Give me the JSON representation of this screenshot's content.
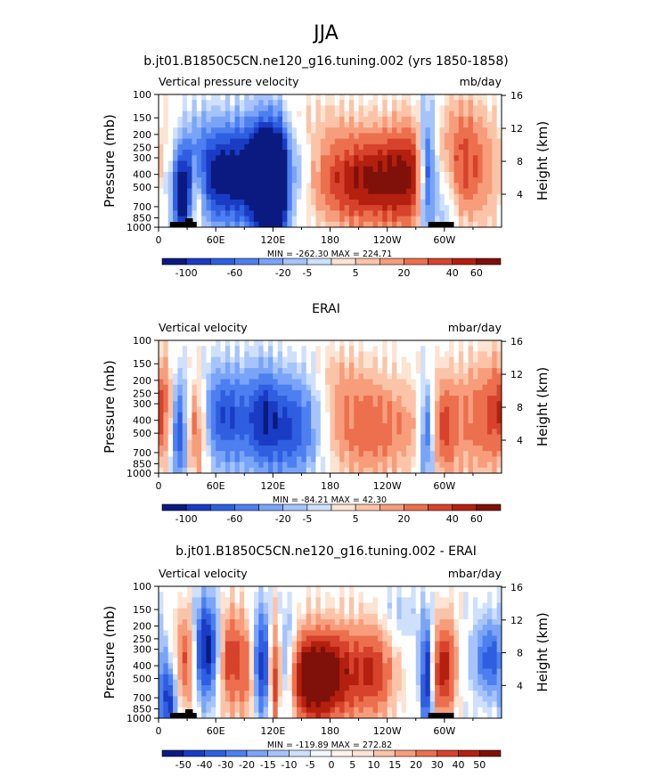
{
  "figure": {
    "season": "JJA"
  },
  "colors": {
    "blues": [
      "#0a1a80",
      "#1a3cc4",
      "#2f5fe0",
      "#4d7ff0",
      "#7aa4f7",
      "#a6c4fb",
      "#cfe0fd"
    ],
    "reds": [
      "#fde3d2",
      "#fbc4a8",
      "#f79d7c",
      "#ec6f4e",
      "#d6422c",
      "#b4200f",
      "#80100a"
    ]
  },
  "chart_data": [
    {
      "type": "heatmap",
      "title": "b.jt01.B1850C5CN.ne120_g16.tuning.002 (yrs 1850-1858)",
      "left_label": "Vertical pressure velocity",
      "right_label": "mb/day",
      "ylabel": "Pressure (mb)",
      "y2label": "Height (km)",
      "x_ticks": [
        "0",
        "60E",
        "120E",
        "180",
        "120W",
        "60W"
      ],
      "y_ticks": [
        "100",
        "150",
        "200",
        "250",
        "300",
        "400",
        "500",
        "700",
        "850",
        "1000"
      ],
      "y2_ticks": [
        "16",
        "12",
        "8",
        "4"
      ],
      "stats": "MIN = -262.30   MAX = 224.71",
      "colorbar_labels": [
        "-100",
        "-60",
        "-20",
        "-5",
        "5",
        "20",
        "40",
        "60"
      ],
      "ylim": [
        1000,
        100
      ],
      "xlim": [
        0,
        360
      ]
    },
    {
      "type": "heatmap",
      "title": "ERAI",
      "left_label": "Vertical velocity",
      "right_label": "mbar/day",
      "ylabel": "Pressure (mb)",
      "y2label": "Height (km)",
      "x_ticks": [
        "0",
        "60E",
        "120E",
        "180",
        "120W",
        "60W"
      ],
      "y_ticks": [
        "100",
        "150",
        "200",
        "250",
        "300",
        "400",
        "500",
        "700",
        "850",
        "1000"
      ],
      "y2_ticks": [
        "16",
        "12",
        "8",
        "4"
      ],
      "stats": "MIN = -84.21   MAX =  42.30",
      "colorbar_labels": [
        "-100",
        "-60",
        "-20",
        "-5",
        "5",
        "20",
        "40",
        "60"
      ],
      "ylim": [
        1000,
        100
      ],
      "xlim": [
        0,
        360
      ]
    },
    {
      "type": "heatmap",
      "title": "b.jt01.B1850C5CN.ne120_g16.tuning.002 - ERAI",
      "left_label": "Vertical velocity",
      "right_label": "mbar/day",
      "ylabel": "Pressure (mb)",
      "y2label": "Height (km)",
      "x_ticks": [
        "0",
        "60E",
        "120E",
        "180",
        "120W",
        "60W"
      ],
      "y_ticks": [
        "100",
        "150",
        "200",
        "250",
        "300",
        "400",
        "500",
        "700",
        "850",
        "1000"
      ],
      "y2_ticks": [
        "16",
        "12",
        "8",
        "4"
      ],
      "stats": "MIN = -119.89   MAX = 272.82",
      "colorbar_labels": [
        "-50",
        "-40",
        "-30",
        "-20",
        "-15",
        "-10",
        "-5",
        "0",
        "5",
        "10",
        "15",
        "20",
        "30",
        "40",
        "50"
      ],
      "ylim": [
        1000,
        100
      ],
      "xlim": [
        0,
        360
      ]
    }
  ]
}
